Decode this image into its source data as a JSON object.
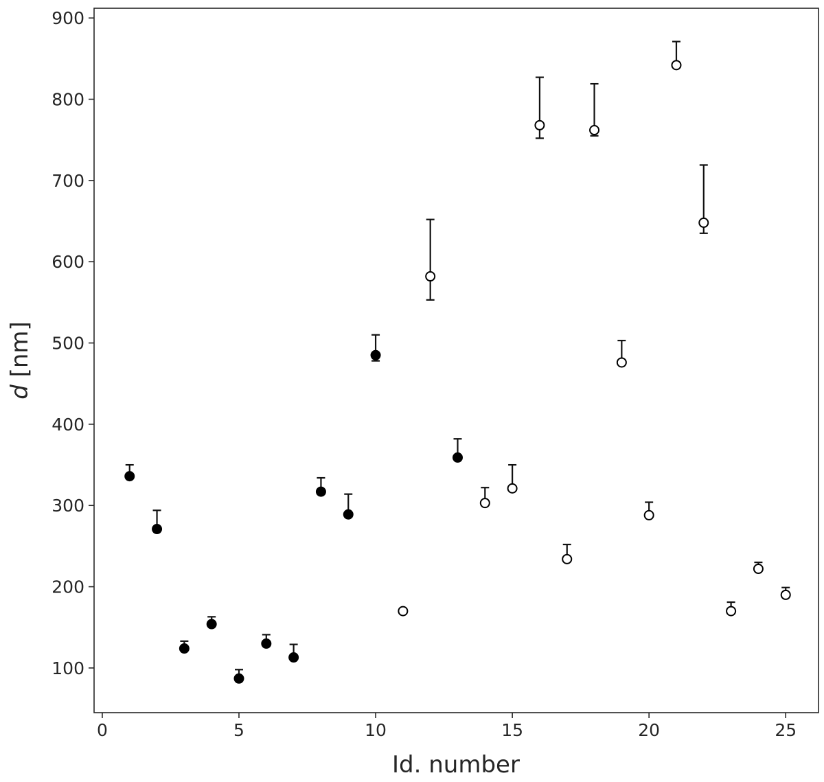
{
  "chart_data": {
    "type": "scatter",
    "xlabel": "Id. number",
    "ylabel_symbol": "d",
    "ylabel_unit": " [nm]",
    "xlim": [
      -0.3,
      26.2
    ],
    "ylim": [
      45,
      912
    ],
    "xticks": [
      0,
      5,
      10,
      15,
      20,
      25
    ],
    "yticks": [
      100,
      200,
      300,
      400,
      500,
      600,
      700,
      800,
      900
    ],
    "xtick_labels": [
      "0",
      "5",
      "10",
      "15",
      "20",
      "25"
    ],
    "ytick_labels": [
      "100",
      "200",
      "300",
      "400",
      "500",
      "600",
      "700",
      "800",
      "900"
    ],
    "grid": false,
    "series": [
      {
        "marker": "filled-circle",
        "points": [
          {
            "x": 1,
            "y": 336,
            "err_low": 338,
            "err_high": 350
          },
          {
            "x": 2,
            "y": 271,
            "err_low": 272,
            "err_high": 294
          },
          {
            "x": 3,
            "y": 124,
            "err_low": 125,
            "err_high": 133
          },
          {
            "x": 4,
            "y": 154,
            "err_low": 155,
            "err_high": 163
          },
          {
            "x": 5,
            "y": 87,
            "err_low": 88,
            "err_high": 98
          },
          {
            "x": 6,
            "y": 130,
            "err_low": 131,
            "err_high": 141
          },
          {
            "x": 7,
            "y": 113,
            "err_low": 114,
            "err_high": 129
          },
          {
            "x": 8,
            "y": 317,
            "err_low": 318,
            "err_high": 334
          },
          {
            "x": 9,
            "y": 289,
            "err_low": 286,
            "err_high": 314
          },
          {
            "x": 10,
            "y": 485,
            "err_low": 478,
            "err_high": 510
          },
          {
            "x": 13,
            "y": 359,
            "err_low": 356,
            "err_high": 382
          }
        ]
      },
      {
        "marker": "open-circle",
        "points": [
          {
            "x": 11,
            "y": 170,
            "err_low": 171,
            "err_high": 171
          },
          {
            "x": 12,
            "y": 582,
            "err_low": 553,
            "err_high": 652
          },
          {
            "x": 14,
            "y": 303,
            "err_low": 304,
            "err_high": 322
          },
          {
            "x": 15,
            "y": 321,
            "err_low": 322,
            "err_high": 350
          },
          {
            "x": 16,
            "y": 768,
            "err_low": 752,
            "err_high": 827
          },
          {
            "x": 17,
            "y": 234,
            "err_low": 235,
            "err_high": 252
          },
          {
            "x": 18,
            "y": 762,
            "err_low": 755,
            "err_high": 819
          },
          {
            "x": 19,
            "y": 476,
            "err_low": 477,
            "err_high": 503
          },
          {
            "x": 20,
            "y": 288,
            "err_low": 289,
            "err_high": 304
          },
          {
            "x": 21,
            "y": 842,
            "err_low": 843,
            "err_high": 871
          },
          {
            "x": 22,
            "y": 648,
            "err_low": 635,
            "err_high": 719
          },
          {
            "x": 23,
            "y": 170,
            "err_low": 171,
            "err_high": 181
          },
          {
            "x": 24,
            "y": 222,
            "err_low": 223,
            "err_high": 230
          },
          {
            "x": 25,
            "y": 190,
            "err_low": 191,
            "err_high": 199
          }
        ]
      }
    ]
  }
}
